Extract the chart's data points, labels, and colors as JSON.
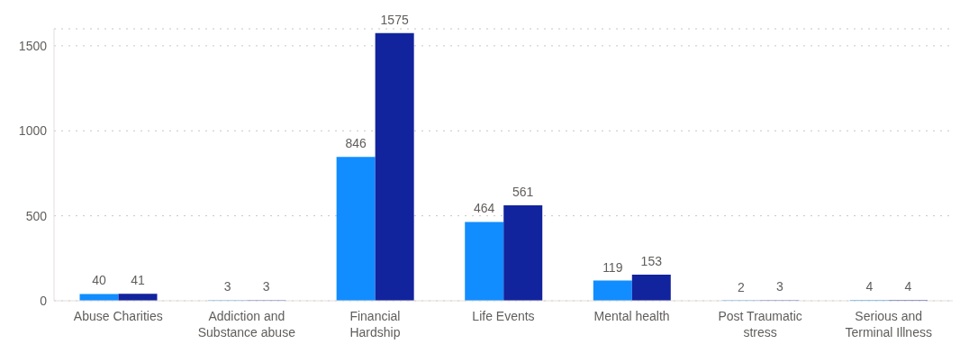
{
  "chart_data": {
    "type": "bar",
    "categories": [
      "Abuse Charities",
      "Addiction and Substance abuse",
      "Financial Hardship",
      "Life Events",
      "Mental health",
      "Post Traumatic stress",
      "Serious and Terminal Illness"
    ],
    "series": [
      {
        "color": "#118dff",
        "values": [
          40,
          3,
          846,
          464,
          119,
          2,
          4
        ]
      },
      {
        "color": "#12239e",
        "values": [
          41,
          3,
          1575,
          561,
          153,
          3,
          4
        ]
      }
    ],
    "ylim": [
      0,
      1600
    ],
    "yticks": [
      0,
      500,
      1000,
      1500
    ],
    "grid": "y",
    "data_labels": true
  }
}
